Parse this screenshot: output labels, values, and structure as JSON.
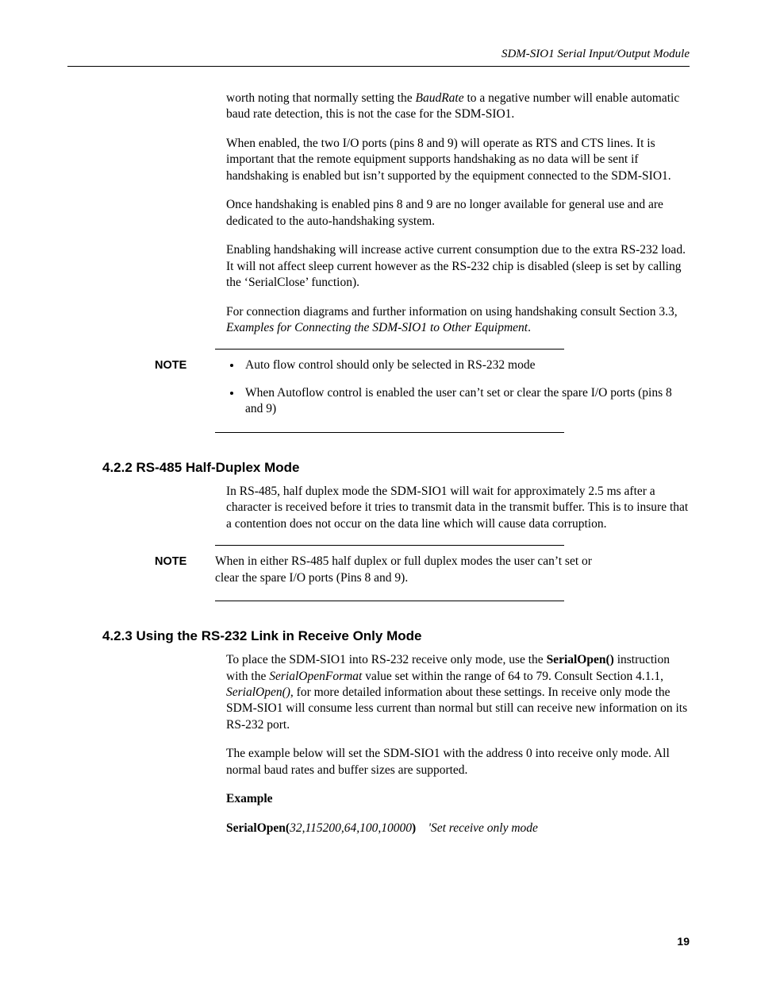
{
  "runningHead": "SDM-SIO1 Serial Input/Output Module",
  "p1_a": "worth noting that normally setting the ",
  "p1_b": "BaudRate",
  "p1_c": " to a negative number will enable automatic baud rate detection, this is not the case for the SDM-SIO1.",
  "p2": "When enabled, the two I/O ports (pins 8 and 9) will operate as RTS and CTS lines. It is important that the remote equipment supports handshaking as no data will be sent if handshaking is enabled but isn’t supported by the equipment connected to the SDM-SIO1.",
  "p3": "Once handshaking is enabled pins 8 and 9 are no longer available for general use and are dedicated to the auto-handshaking system.",
  "p4": "Enabling handshaking will increase active current consumption due to the extra RS-232 load. It will not affect sleep current however as the RS-232 chip is disabled (sleep is set by calling the ‘SerialClose’ function).",
  "p5_a": "For connection diagrams and further information on using handshaking consult Section 3.3, ",
  "p5_b": "Examples for Connecting the SDM-SIO1 to Other Equipment",
  "p5_c": ".",
  "noteLabel": "NOTE",
  "note1_li1": "Auto flow control should only be selected in RS-232 mode",
  "note1_li2": "When Autoflow control is enabled the user can’t set or clear the spare I/O ports (pins 8 and 9)",
  "h422": "4.2.2  RS-485 Half-Duplex Mode",
  "p6": "In RS-485, half duplex mode the SDM-SIO1 will wait for approximately 2.5 ms after a character is received before it tries to transmit data in the transmit buffer. This is to insure that a contention does not occur on the data line which will cause data corruption.",
  "note2": "When in either RS-485 half duplex or full duplex modes the user can’t set or clear the spare I/O ports (Pins 8 and 9).",
  "h423": "4.2.3  Using the RS-232 Link in Receive Only Mode",
  "p7_a": "To place the SDM-SIO1 into RS-232 receive only mode, use the ",
  "p7_b": "SerialOpen()",
  "p7_c": " instruction with the ",
  "p7_d": "SerialOpenFormat",
  "p7_e": " value set within the range of 64 to 79. Consult Section 4.1.1, ",
  "p7_f": "SerialOpen()",
  "p7_g": ", for more detailed information about these settings.  In receive only mode the SDM-SIO1 will consume less current than normal but still can receive new information on its RS-232 port.",
  "p8": "The example below will set the SDM-SIO1 with the address 0 into receive only mode. All normal baud rates and buffer sizes are supported.",
  "exampleLabel": "Example",
  "code_a": "SerialOpen(",
  "code_b": "32,115200,64,100,10000",
  "code_c": ")",
  "code_comment": "'Set receive only mode",
  "pageNumber": "19"
}
